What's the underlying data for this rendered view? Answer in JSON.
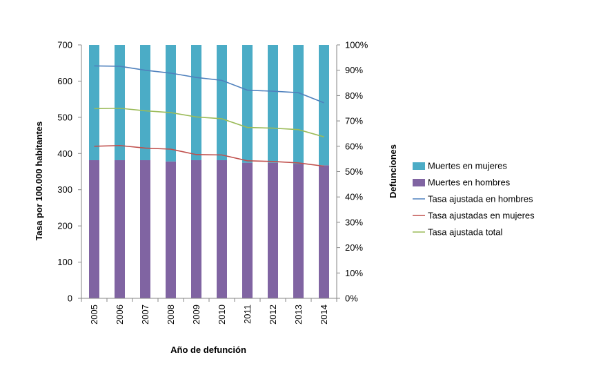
{
  "chart_data": {
    "type": "bar",
    "categories": [
      "2005",
      "2006",
      "2007",
      "2008",
      "2009",
      "2010",
      "2011",
      "2012",
      "2013",
      "2014"
    ],
    "bar_series": [
      {
        "name": "Muertes en hombres",
        "values": [
          54.5,
          54.5,
          54.5,
          54.0,
          54.5,
          54.5,
          53.5,
          53.5,
          53.0,
          52.5
        ],
        "color": "#8064a2",
        "unit": "%"
      },
      {
        "name": "Muertes en mujeres",
        "values": [
          45.5,
          45.5,
          45.5,
          46.0,
          45.5,
          45.5,
          46.5,
          46.5,
          47.0,
          47.5
        ],
        "color": "#4bacc6",
        "unit": "%"
      }
    ],
    "line_series": [
      {
        "name": "Tasa ajustada en hombres",
        "values": [
          642,
          641,
          630,
          622,
          610,
          602,
          575,
          572,
          568,
          540
        ],
        "color": "#4f81bd"
      },
      {
        "name": "Tasa ajustadas en mujeres",
        "values": [
          420,
          422,
          415,
          412,
          397,
          396,
          380,
          378,
          374,
          365
        ],
        "color": "#c0504d"
      },
      {
        "name": "Tasa ajustada total",
        "values": [
          524,
          525,
          518,
          513,
          501,
          496,
          472,
          470,
          466,
          446
        ],
        "color": "#9bbb59"
      }
    ],
    "legend_order": [
      "Muertes en mujeres",
      "Muertes en hombres",
      "Tasa ajustada en hombres",
      "Tasa ajustadas en mujeres",
      "Tasa ajustada total"
    ],
    "xlabel": "Año de defunción",
    "ylabel_left": "Tasa por 100.000 habitantes",
    "ylabel_right": "Defunciones",
    "ylim_left": [
      0,
      700
    ],
    "yticks_left": [
      "0",
      "100",
      "200",
      "300",
      "400",
      "500",
      "600",
      "700"
    ],
    "ylim_right": [
      0,
      100
    ],
    "yticks_right": [
      "0%",
      "10%",
      "20%",
      "30%",
      "40%",
      "50%",
      "60%",
      "70%",
      "80%",
      "90%",
      "100%"
    ],
    "grid": false,
    "legend_position": "right"
  }
}
